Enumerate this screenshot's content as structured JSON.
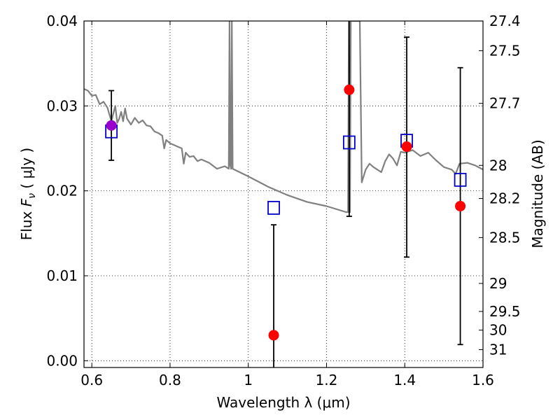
{
  "chart_data": {
    "type": "scatter",
    "xlabel": "Wavelength  λ (μm)",
    "ylabel_parts": {
      "prefix": "Flux ",
      "symbol": "F",
      "subscript": "ν",
      "unit": "  ( μJy )"
    },
    "ylabel_right": "Magnitude (AB)",
    "xlim": [
      0.58,
      1.6
    ],
    "ylim": [
      -0.0008,
      0.04
    ],
    "grid": true,
    "x_ticks": [
      {
        "value": 0.6,
        "label": "0.6"
      },
      {
        "value": 0.8,
        "label": "0.8"
      },
      {
        "value": 1.0,
        "label": "1"
      },
      {
        "value": 1.2,
        "label": "1.2"
      },
      {
        "value": 1.4,
        "label": "1.4"
      },
      {
        "value": 1.6,
        "label": "1.6"
      }
    ],
    "y_ticks": [
      {
        "value": 0.0,
        "label": "0.00"
      },
      {
        "value": 0.01,
        "label": "0.01"
      },
      {
        "value": 0.02,
        "label": "0.02"
      },
      {
        "value": 0.03,
        "label": "0.03"
      },
      {
        "value": 0.04,
        "label": "0.04"
      }
    ],
    "mag_ticks": [
      {
        "label": "27.4",
        "flux": 0.04
      },
      {
        "label": "27.5",
        "flux": 0.0365
      },
      {
        "label": "27.7",
        "flux": 0.0303
      },
      {
        "label": "28",
        "flux": 0.023
      },
      {
        "label": "28.2",
        "flux": 0.0191
      },
      {
        "label": "28.5",
        "flux": 0.0145
      },
      {
        "label": "29",
        "flux": 0.0091
      },
      {
        "label": "29.5",
        "flux": 0.0058
      },
      {
        "label": "30",
        "flux": 0.0036
      },
      {
        "label": "31",
        "flux": 0.0013
      }
    ],
    "series": [
      {
        "kind": "model_sed",
        "color": "#808080",
        "x": [
          0.58,
          0.59,
          0.6,
          0.61,
          0.62,
          0.63,
          0.64,
          0.645,
          0.65,
          0.66,
          0.665,
          0.67,
          0.675,
          0.68,
          0.685,
          0.69,
          0.7,
          0.71,
          0.72,
          0.73,
          0.74,
          0.75,
          0.76,
          0.77,
          0.78,
          0.785,
          0.79,
          0.8,
          0.81,
          0.82,
          0.83,
          0.835,
          0.84,
          0.85,
          0.86,
          0.87,
          0.88,
          0.9,
          0.92,
          0.94,
          0.95,
          0.952,
          0.954,
          0.956,
          0.958,
          0.96,
          1.0,
          1.05,
          1.1,
          1.15,
          1.2,
          1.25,
          1.255,
          1.257,
          1.26,
          1.262,
          1.265,
          1.27,
          1.28,
          1.285,
          1.29,
          1.3,
          1.31,
          1.32,
          1.33,
          1.34,
          1.35,
          1.36,
          1.37,
          1.38,
          1.39,
          1.4,
          1.42,
          1.44,
          1.46,
          1.48,
          1.5,
          1.52,
          1.53,
          1.54,
          1.56,
          1.58,
          1.6
        ],
        "y": [
          0.032,
          0.0318,
          0.0312,
          0.0313,
          0.0302,
          0.0305,
          0.0298,
          0.029,
          0.0282,
          0.03,
          0.028,
          0.0285,
          0.0293,
          0.0282,
          0.0297,
          0.0285,
          0.0278,
          0.0286,
          0.028,
          0.0283,
          0.0277,
          0.0276,
          0.027,
          0.0268,
          0.0265,
          0.025,
          0.026,
          0.0256,
          0.0254,
          0.0252,
          0.025,
          0.0232,
          0.0245,
          0.024,
          0.0241,
          0.0235,
          0.0237,
          0.0233,
          0.0226,
          0.0229,
          0.0226,
          0.04,
          0.023,
          0.0226,
          0.04,
          0.0226,
          0.0217,
          0.0205,
          0.0195,
          0.0187,
          0.0182,
          0.0175,
          0.0175,
          0.04,
          0.0175,
          0.04,
          0.04,
          0.04,
          0.04,
          0.04,
          0.021,
          0.0225,
          0.0232,
          0.0228,
          0.0225,
          0.0222,
          0.0235,
          0.0243,
          0.0238,
          0.023,
          0.0246,
          0.0245,
          0.0248,
          0.0241,
          0.0245,
          0.0236,
          0.0228,
          0.0225,
          0.022,
          0.0232,
          0.0233,
          0.023,
          0.0225
        ]
      },
      {
        "kind": "model_photometry",
        "marker": "open-square",
        "color": "#0000cc",
        "x": [
          0.65,
          1.065,
          1.258,
          1.405,
          1.542
        ],
        "y": [
          0.027,
          0.018,
          0.0257,
          0.0259,
          0.0213
        ]
      },
      {
        "kind": "observed_photometry",
        "marker": "filled-circle",
        "colors": [
          "#9900cc",
          "#ff0000",
          "#ff0000",
          "#ff0000",
          "#ff0000"
        ],
        "x": [
          0.65,
          1.065,
          1.258,
          1.405,
          1.542
        ],
        "y": [
          0.0277,
          0.003,
          0.0319,
          0.0252,
          0.0182
        ],
        "err_low": [
          0.0236,
          -0.001,
          0.017,
          0.0122,
          0.0019
        ],
        "err_high": [
          0.0318,
          0.016,
          0.0405,
          0.0381,
          0.0345
        ],
        "err_color": "#000000"
      }
    ]
  }
}
